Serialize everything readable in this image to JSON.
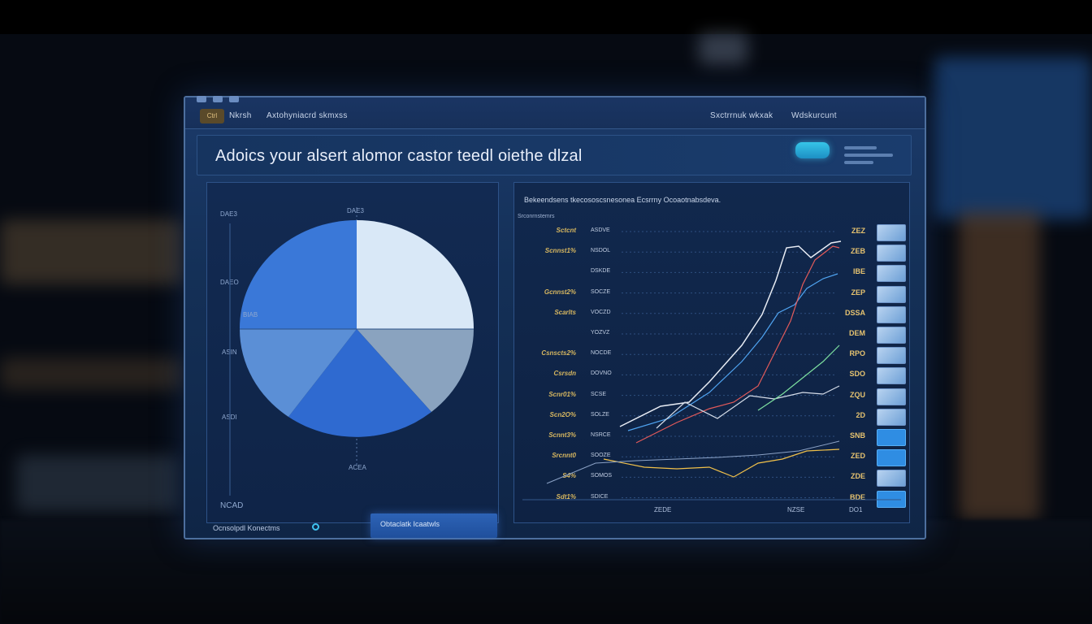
{
  "window": {
    "tab_badge": "Ctrl",
    "tab_label": "Nkrsh",
    "tab_label_2": "Axtohyniacrd skmxss",
    "top_right_1": "Sxctrrnuk wkxak",
    "top_right_2": "Wdskurcunt"
  },
  "header": {
    "title": "Adoics your  alsert alomor castor teedl oiethe dlzal",
    "button_label": ""
  },
  "pie_panel": {
    "top_label": "DAE3",
    "left_ticks": [
      "DAE3",
      "DAEO",
      "ASIN",
      "ASDI",
      "NCAD"
    ],
    "slice_label": "BIAB",
    "bottom_label": "ACEA",
    "colors": {
      "slice_a": "#3a78d8",
      "slice_b": "#d9e8f7",
      "slice_c": "#8aa3bf",
      "slice_d": "#2f6ad0",
      "slice_e": "#5b8fd6"
    }
  },
  "footer": {
    "label": "Ocnsolpdl Konectms",
    "tab_label": "Obtaclatk Icaatwls"
  },
  "line_panel": {
    "title": "Bekeendsens tkecososcsnesonea Ecsrrny  Ocoaotnabsdeva.",
    "subtitle": "Srconrnstemrs",
    "rows": [
      {
        "label": "Sctcnt",
        "code": "ASDVE",
        "value": "ZEZ"
      },
      {
        "label": "Scnnst1%",
        "code": "NSDOL",
        "value": "ZEB"
      },
      {
        "label": "",
        "code": "DSKDE",
        "value": "IBE"
      },
      {
        "label": "Gcnnst2%",
        "code": "SOCZE",
        "value": "ZEP"
      },
      {
        "label": "Scarlts",
        "code": "VOCZD",
        "value": "DSSA"
      },
      {
        "label": "",
        "code": "YOZVZ",
        "value": "DEM"
      },
      {
        "label": "Csnscts2%",
        "code": "NOCDE",
        "value": "RPO"
      },
      {
        "label": "Csrsdn",
        "code": "DOVNO",
        "value": "SDO"
      },
      {
        "label": "Scnr01%",
        "code": "SCSE",
        "value": "ZQU"
      },
      {
        "label": "Scn2O%",
        "code": "SOLZE",
        "value": "2D"
      },
      {
        "label": "Scnnt3%",
        "code": "NSRCE",
        "value": "SNB"
      },
      {
        "label": "Srcnnt0",
        "code": "SOOZE",
        "value": "ZED"
      },
      {
        "label": "S4%",
        "code": "SOMOS",
        "value": "ZDE"
      },
      {
        "label": "Sdt1%",
        "code": "SDICE",
        "value": "BDE"
      }
    ],
    "x_ticks": [
      "ZEDE",
      "NZSE",
      "DO1"
    ],
    "series_colors": [
      "#e8ecf4",
      "#4fa3f0",
      "#e25a5a",
      "#f0c04a",
      "#7de0a0"
    ]
  }
}
